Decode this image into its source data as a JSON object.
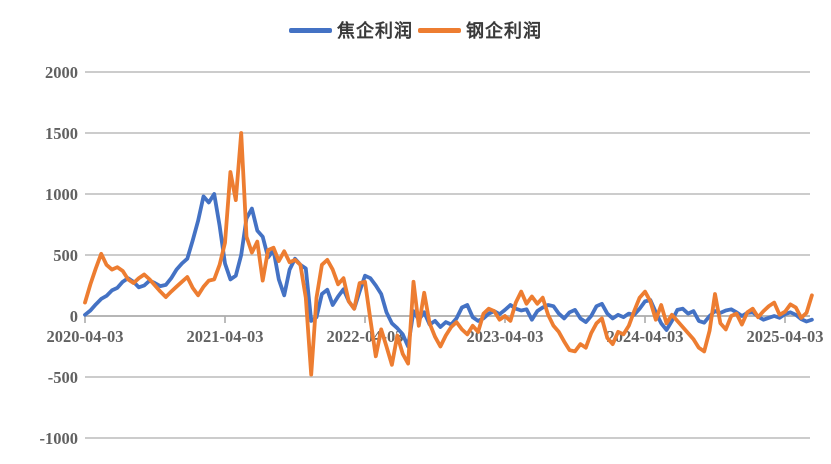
{
  "legend": {
    "items": [
      {
        "label": "焦企利润",
        "color": "#4472C4"
      },
      {
        "label": "钢企利润",
        "color": "#ED7D31"
      }
    ]
  },
  "colors": {
    "background": "#FFFFFF",
    "grid": "#C4C4C4",
    "axis_line": "#ACACAC",
    "axis_text": "#616161",
    "legend_text": "#3a3a3a",
    "series_blue": "#4472C4",
    "series_orange": "#ED7D31"
  },
  "chart_data": {
    "type": "line",
    "title": "",
    "xlabel": "",
    "ylabel": "",
    "grid": "horizontal",
    "legend_position": "top-center",
    "x_axis": {
      "tick_labels": [
        "2020-04-03",
        "2021-04-03",
        "2022-04-03",
        "2023-04-03",
        "2024-04-03",
        "2025-04-03"
      ],
      "tick_positions_years": [
        0,
        1,
        2,
        3,
        4,
        5
      ],
      "unit": "weekly observations, x measured in years after 2020-04-03"
    },
    "y_axis": {
      "ticks": [
        2000,
        1500,
        1000,
        500,
        0,
        -500,
        -1000
      ],
      "range": [
        -1000,
        2000
      ]
    },
    "x_start_years": 0,
    "x_step_years": 0.038461538,
    "series": [
      {
        "name": "焦企利润",
        "color": "#4472C4",
        "values": [
          10,
          45,
          95,
          140,
          165,
          210,
          230,
          280,
          310,
          280,
          235,
          250,
          290,
          270,
          245,
          255,
          310,
          380,
          430,
          470,
          620,
          780,
          980,
          930,
          1000,
          740,
          430,
          300,
          330,
          500,
          800,
          880,
          700,
          650,
          480,
          540,
          300,
          170,
          380,
          470,
          420,
          390,
          -40,
          -10,
          180,
          215,
          90,
          160,
          220,
          120,
          60,
          200,
          330,
          310,
          250,
          180,
          30,
          -60,
          -100,
          -150,
          -250,
          40,
          -30,
          30,
          -70,
          -40,
          -90,
          -50,
          -70,
          -20,
          70,
          90,
          -10,
          -40,
          -20,
          20,
          40,
          15,
          50,
          90,
          60,
          45,
          55,
          -30,
          40,
          70,
          90,
          80,
          20,
          -20,
          30,
          50,
          -20,
          -50,
          0,
          80,
          100,
          20,
          -20,
          10,
          -10,
          20,
          10,
          60,
          120,
          130,
          30,
          -60,
          -115,
          -40,
          50,
          60,
          20,
          40,
          -40,
          -55,
          0,
          40,
          25,
          45,
          55,
          30,
          0,
          25,
          30,
          -5,
          -30,
          -15,
          0,
          -15,
          15,
          30,
          10,
          -25,
          -45,
          -30
        ]
      },
      {
        "name": "钢企利润",
        "color": "#ED7D31",
        "values": [
          110,
          260,
          390,
          510,
          420,
          380,
          400,
          370,
          300,
          270,
          310,
          340,
          300,
          250,
          200,
          155,
          200,
          240,
          280,
          320,
          230,
          170,
          240,
          290,
          300,
          420,
          600,
          1180,
          950,
          1500,
          650,
          520,
          610,
          290,
          540,
          560,
          450,
          530,
          440,
          460,
          420,
          150,
          -480,
          150,
          420,
          460,
          380,
          260,
          310,
          120,
          60,
          270,
          280,
          -30,
          -330,
          -110,
          -250,
          -400,
          -160,
          -310,
          -390,
          280,
          -80,
          190,
          -60,
          -170,
          -250,
          -160,
          -90,
          -50,
          -110,
          -150,
          -80,
          -130,
          20,
          60,
          40,
          -30,
          0,
          -40,
          110,
          200,
          100,
          160,
          100,
          150,
          10,
          -80,
          -130,
          -210,
          -280,
          -290,
          -230,
          -260,
          -140,
          -60,
          -20,
          -180,
          -230,
          -130,
          -150,
          -80,
          40,
          150,
          200,
          120,
          -30,
          90,
          -60,
          10,
          -40,
          -90,
          -140,
          -190,
          -260,
          -290,
          -120,
          180,
          -60,
          -110,
          0,
          20,
          -70,
          30,
          60,
          -10,
          40,
          80,
          110,
          10,
          35,
          95,
          70,
          -15,
          25,
          170
        ]
      }
    ]
  }
}
